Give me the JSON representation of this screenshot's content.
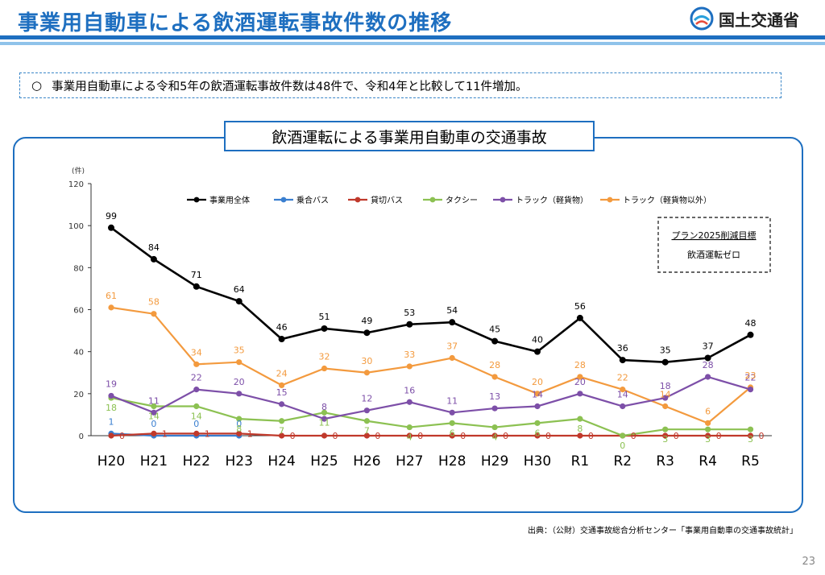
{
  "header": {
    "title": "事業用自動車による飲酒運転事故件数の推移",
    "logo_text": "国土交通省"
  },
  "summary": {
    "bullet": "○",
    "text": "事業用自動車による令和5年の飲酒運転事故件数は48件で、令和4年と比較して11件増加。"
  },
  "panel": {
    "title": "飲酒運転による事業用自動車の交通事故"
  },
  "target_box": {
    "line1": "プラン2025削減目標",
    "line2": "飲酒運転ゼロ"
  },
  "source": "出典：（公財）交通事故総合分析センター「事業用自動車の交通事故統計」",
  "page_number": "23",
  "chart_data": {
    "type": "line",
    "unit_label": "(件)",
    "ylim": [
      0,
      120
    ],
    "yticks": [
      0,
      20,
      40,
      60,
      80,
      100,
      120
    ],
    "grid": false,
    "legend_position": "top",
    "categories": [
      "H20",
      "H21",
      "H22",
      "H23",
      "H24",
      "H25",
      "H26",
      "H27",
      "H28",
      "H29",
      "H30",
      "R1",
      "R2",
      "R3",
      "R4",
      "R5"
    ],
    "series": [
      {
        "name": "事業用全体",
        "color": "#000000",
        "values": [
          99,
          84,
          71,
          64,
          46,
          51,
          49,
          53,
          54,
          45,
          40,
          56,
          36,
          35,
          37,
          48
        ]
      },
      {
        "name": "乗合バス",
        "color": "#3a7fd0",
        "values": [
          1,
          0,
          0,
          0,
          null,
          null,
          null,
          null,
          null,
          null,
          null,
          null,
          null,
          null,
          null,
          null
        ]
      },
      {
        "name": "貸切バス",
        "color": "#c0392b",
        "values": [
          0,
          1,
          1,
          1,
          0,
          0,
          0,
          0,
          0,
          0,
          0,
          0,
          0,
          0,
          0,
          0
        ]
      },
      {
        "name": "タクシー",
        "color": "#8cc152",
        "values": [
          18,
          14,
          14,
          8,
          7,
          11,
          7,
          4,
          6,
          4,
          6,
          8,
          0,
          3,
          3,
          3
        ]
      },
      {
        "name": "トラック（軽貨物）",
        "color": "#7d4fa8",
        "values": [
          19,
          11,
          22,
          20,
          15,
          8,
          12,
          16,
          11,
          13,
          14,
          20,
          14,
          18,
          28,
          22
        ]
      },
      {
        "name": "トラック（軽貨物以外）",
        "color": "#f39a3e",
        "values": [
          61,
          58,
          34,
          35,
          24,
          32,
          30,
          33,
          37,
          28,
          20,
          28,
          22,
          14,
          6,
          23
        ]
      }
    ]
  }
}
